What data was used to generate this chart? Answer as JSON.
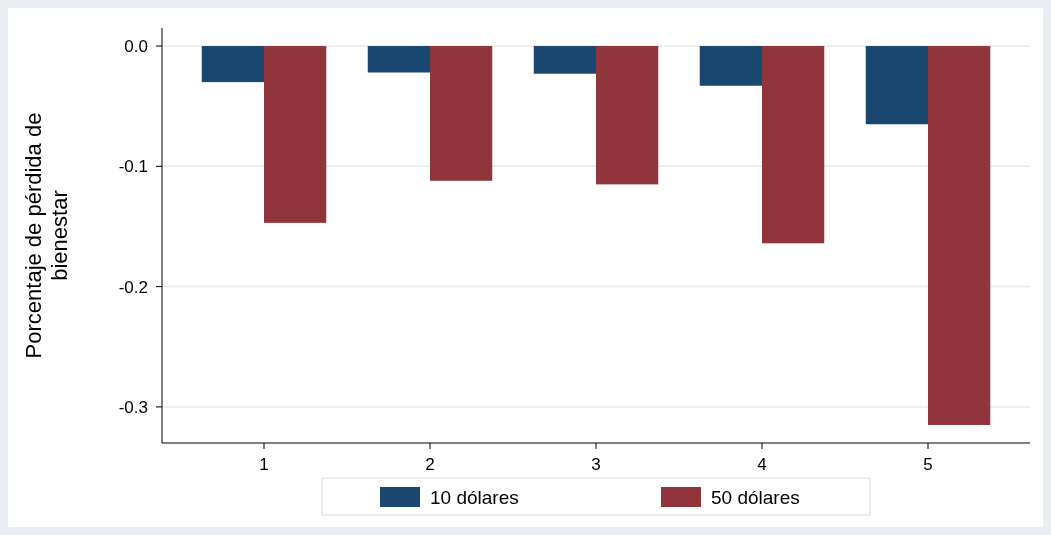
{
  "chart_data": {
    "type": "bar",
    "ylabel": "Porcentaje de pérdida de bienestar",
    "categories": [
      "1",
      "2",
      "3",
      "4",
      "5"
    ],
    "series": [
      {
        "name": "10 dólares",
        "color": "#1a476f",
        "values": [
          -0.03,
          -0.022,
          -0.023,
          -0.033,
          -0.065
        ]
      },
      {
        "name": "50 dólares",
        "color": "#90353b",
        "values": [
          -0.147,
          -0.112,
          -0.115,
          -0.164,
          -0.315
        ]
      }
    ],
    "ylim": [
      -0.33,
      0.015
    ],
    "yticks": [
      {
        "value": 0,
        "label": "0.0"
      },
      -0.1,
      -0.2,
      -0.3
    ],
    "grid": "y",
    "legend": "bottom"
  }
}
